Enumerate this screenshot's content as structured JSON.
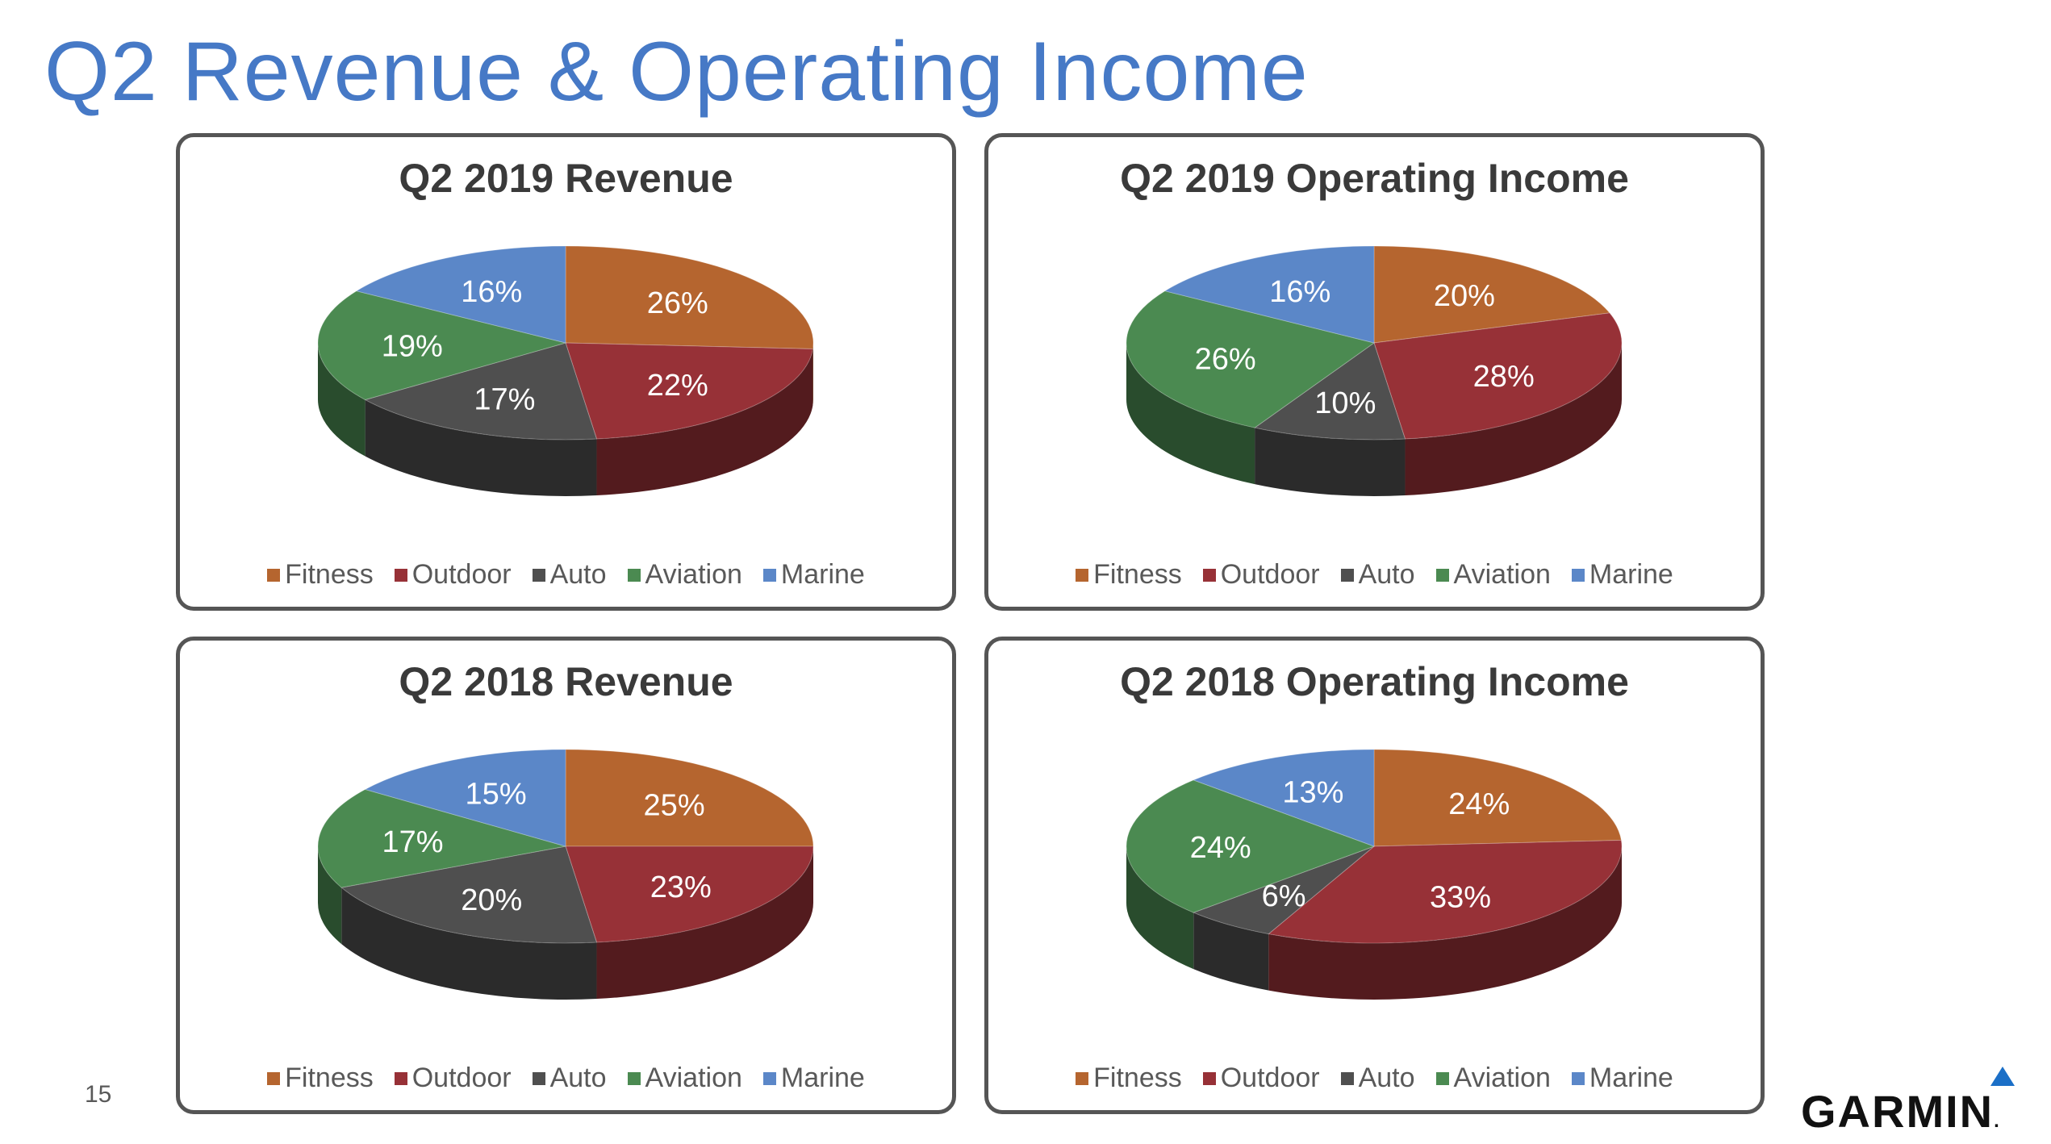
{
  "title": "Q2 Revenue & Operating Income",
  "page_number": "15",
  "logo": {
    "text": "GARMIN",
    "trademark": "."
  },
  "colors": {
    "Fitness": "#B5652F",
    "Outdoor": "#973137",
    "Auto": "#4F4F4F",
    "Aviation": "#4B8A51",
    "Marine": "#5B87C8"
  },
  "chart_data": [
    {
      "type": "pie",
      "title": "Q2 2019 Revenue",
      "categories": [
        "Fitness",
        "Outdoor",
        "Auto",
        "Aviation",
        "Marine"
      ],
      "values": [
        26,
        22,
        17,
        19,
        16
      ],
      "labels": [
        "26%",
        "22%",
        "17%",
        "19%",
        "16%"
      ],
      "legend": [
        "Fitness",
        "Outdoor",
        "Auto",
        "Aviation",
        "Marine"
      ],
      "legend_position": "bottom"
    },
    {
      "type": "pie",
      "title": "Q2 2019 Operating Income",
      "categories": [
        "Fitness",
        "Outdoor",
        "Auto",
        "Aviation",
        "Marine"
      ],
      "values": [
        20,
        28,
        10,
        26,
        16
      ],
      "labels": [
        "20%",
        "28%",
        "10%",
        "26%",
        "16%"
      ],
      "legend": [
        "Fitness",
        "Outdoor",
        "Auto",
        "Aviation",
        "Marine"
      ],
      "legend_position": "bottom"
    },
    {
      "type": "pie",
      "title": "Q2 2018 Revenue",
      "categories": [
        "Fitness",
        "Outdoor",
        "Auto",
        "Aviation",
        "Marine"
      ],
      "values": [
        25,
        23,
        20,
        17,
        15
      ],
      "labels": [
        "25%",
        "23%",
        "20%",
        "17%",
        "15%"
      ],
      "legend": [
        "Fitness",
        "Outdoor",
        "Auto",
        "Aviation",
        "Marine"
      ],
      "legend_position": "bottom"
    },
    {
      "type": "pie",
      "title": "Q2 2018 Operating Income",
      "categories": [
        "Fitness",
        "Outdoor",
        "Auto",
        "Aviation",
        "Marine"
      ],
      "values": [
        24,
        33,
        6,
        24,
        13
      ],
      "labels": [
        "24%",
        "33%",
        "6%",
        "24%",
        "13%"
      ],
      "legend": [
        "Fitness",
        "Outdoor",
        "Auto",
        "Aviation",
        "Marine"
      ],
      "legend_position": "bottom"
    }
  ]
}
